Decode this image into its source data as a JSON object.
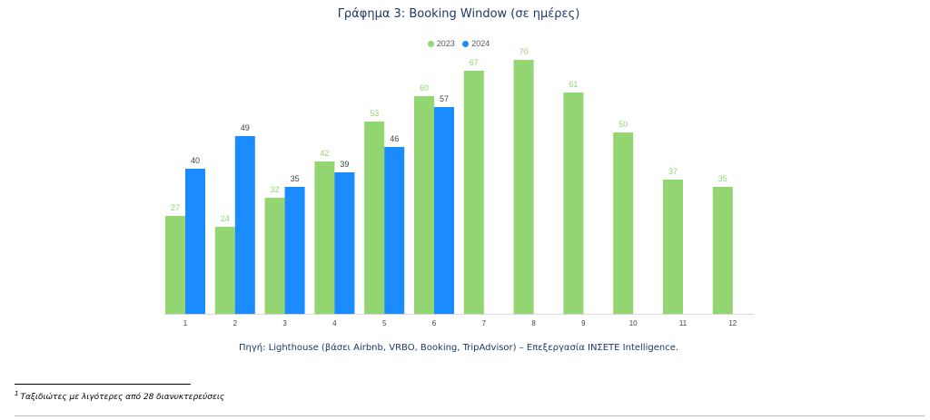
{
  "page": {
    "title": "Γράφημα 3: Booking Window (σε ημέρες)",
    "source": "Πηγή: Lighthouse (βάσει Airbnb, VRBO, Booking, TripAdvisor) – Επεξεργασία ΙΝΣΕΤΕ Intelligence.",
    "footnote_marker": "1",
    "footnote": "Ταξιδιώτες με λιγότερες από 28 διανυκτερεύσεις"
  },
  "chart_data": {
    "type": "bar",
    "title": "Γράφημα 3: Booking Window (σε ημέρες)",
    "xlabel": "",
    "ylabel": "",
    "ylim": [
      0,
      80
    ],
    "grid": false,
    "legend_position": "top",
    "categories": [
      "1",
      "2",
      "3",
      "4",
      "5",
      "6",
      "7",
      "8",
      "9",
      "10",
      "11",
      "12"
    ],
    "series": [
      {
        "name": "2023",
        "color": "#92d571",
        "values": [
          27,
          24,
          32,
          42,
          53,
          60,
          67,
          70,
          61,
          50,
          37,
          35
        ]
      },
      {
        "name": "2024",
        "color": "#1a8cff",
        "values": [
          40,
          49,
          35,
          39,
          46,
          57,
          null,
          null,
          null,
          null,
          null,
          null
        ]
      }
    ]
  }
}
